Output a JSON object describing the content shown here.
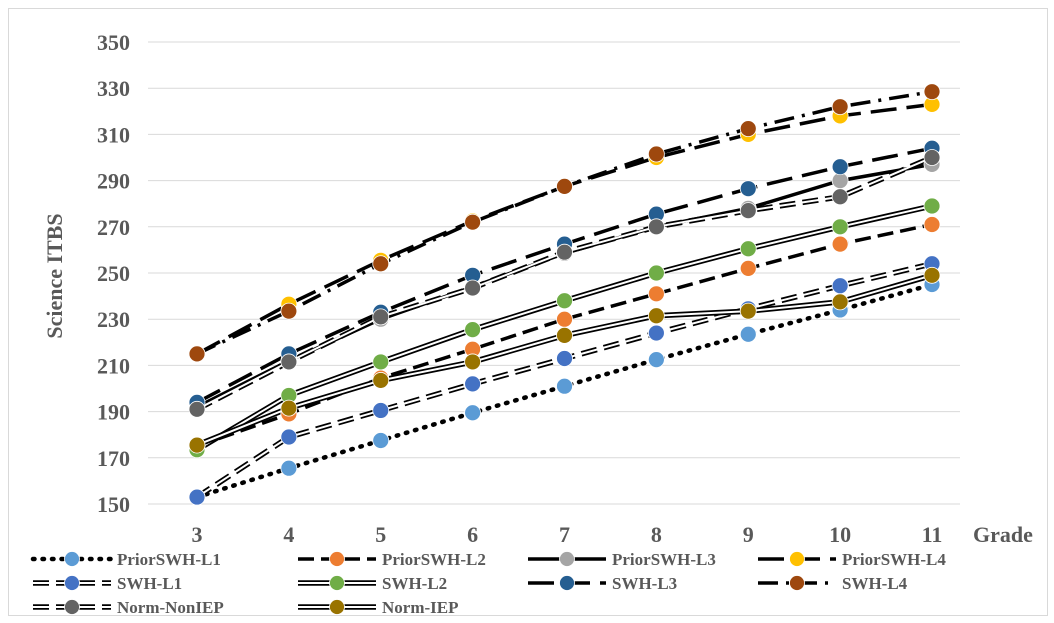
{
  "chart_data": {
    "type": "line",
    "title": "",
    "xlabel": "Grade",
    "ylabel": "Science ITBS",
    "x": [
      3,
      4,
      5,
      6,
      7,
      8,
      9,
      10,
      11
    ],
    "xtick_labels": [
      "3",
      "4",
      "5",
      "6",
      "7",
      "8",
      "9",
      "10",
      "11"
    ],
    "ylim": [
      150,
      350
    ],
    "ytick_labels": [
      "150",
      "170",
      "190",
      "210",
      "230",
      "250",
      "270",
      "290",
      "310",
      "330",
      "350"
    ],
    "grid": true,
    "legend_position": "bottom",
    "series": [
      {
        "name": "PriorSWH-L1",
        "color": "#5B9BD5",
        "dash": "dot",
        "values": [
          153,
          165.5,
          177.5,
          189.5,
          201,
          212.5,
          223.5,
          234,
          245
        ]
      },
      {
        "name": "PriorSWH-L2",
        "color": "#ED7D31",
        "dash": "dash",
        "values": [
          175,
          189,
          204.5,
          217,
          230,
          241,
          252,
          262.5,
          271
        ]
      },
      {
        "name": "PriorSWH-L3",
        "color": "#A5A5A5",
        "dash": "solid",
        "values": [
          192,
          212,
          230,
          244,
          258.5,
          270,
          278,
          290,
          297
        ]
      },
      {
        "name": "PriorSWH-L4",
        "color": "#FFC000",
        "dash": "longdash",
        "values": [
          215,
          236.5,
          255.5,
          272.5,
          287.5,
          300,
          310,
          318,
          323
        ]
      },
      {
        "name": "SWH-L1",
        "color": "#4472C4",
        "dash": "dash-double",
        "values": [
          153,
          179,
          190.5,
          202,
          213,
          224,
          234.5,
          244.5,
          254
        ]
      },
      {
        "name": "SWH-L2",
        "color": "#70AD47",
        "dash": "double",
        "values": [
          173.5,
          197,
          211.5,
          225.5,
          238,
          250,
          260.5,
          270,
          279
        ]
      },
      {
        "name": "SWH-L3",
        "color": "#255E91",
        "dash": "longdash",
        "values": [
          194,
          215,
          233,
          249,
          262.5,
          275.5,
          286.5,
          296,
          304
        ]
      },
      {
        "name": "SWH-L4",
        "color": "#9E480E",
        "dash": "dashdot",
        "values": [
          215,
          233.5,
          254,
          272,
          287.5,
          301.5,
          312.5,
          322,
          328.5
        ]
      },
      {
        "name": "Norm-NonIEP",
        "color": "#636363",
        "dash": "dash-double",
        "values": [
          191,
          211.5,
          231,
          243.5,
          259,
          270,
          277,
          283,
          300
        ]
      },
      {
        "name": "Norm-IEP",
        "color": "#997300",
        "dash": "double",
        "values": [
          175.5,
          191.5,
          203.5,
          211.5,
          223,
          231.5,
          233.5,
          237.5,
          249
        ]
      }
    ]
  }
}
